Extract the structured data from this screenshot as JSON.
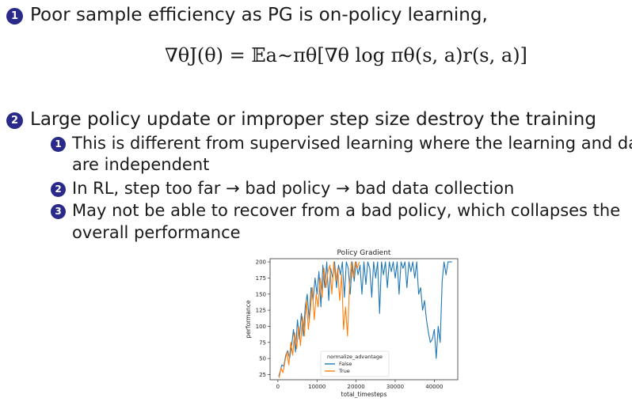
{
  "items": {
    "i1": {
      "num": "1",
      "text": "Poor sample efficiency as PG is on-policy learning,"
    },
    "i2": {
      "num": "2",
      "text": "Large policy update or improper step size destroy the training"
    }
  },
  "formula": {
    "lhs": "∇θJ(θ) =",
    "rhs": "𝔼a∼πθ[∇θ log πθ(s, a)r(s, a)]"
  },
  "subitems": [
    {
      "num": "1",
      "line1": "This is different from supervised learning where the learning and data",
      "line2": "are independent"
    },
    {
      "num": "2",
      "line1": "In RL, step too far → bad policy → bad data collection"
    },
    {
      "num": "3",
      "line1": "May not be able to recover from a bad policy, which collapses the",
      "line2": "overall performance"
    }
  ],
  "chart_data": {
    "type": "line",
    "title": "Policy Gradient",
    "xlabel": "total_timesteps",
    "ylabel": "performance",
    "xlim": [
      -2000,
      46000
    ],
    "ylim": [
      17,
      205
    ],
    "xticks": [
      0,
      10000,
      20000,
      30000,
      40000
    ],
    "yticks": [
      25,
      50,
      75,
      100,
      125,
      150,
      175,
      200
    ],
    "legend": {
      "title": "normalize_advantage",
      "placement": "lower-center"
    },
    "series": [
      {
        "name": "False",
        "color": "#1f77b4",
        "x": [
          200,
          600,
          1000,
          1500,
          2000,
          2500,
          3000,
          3500,
          4000,
          4500,
          5000,
          5500,
          6000,
          6500,
          7000,
          7500,
          8000,
          8500,
          9000,
          9500,
          10000,
          10500,
          11000,
          11500,
          12000,
          12500,
          13000,
          13500,
          14000,
          14500,
          15000,
          15500,
          16000,
          16500,
          17000,
          17500,
          18000,
          18500,
          19000,
          19500,
          20000,
          20500,
          21000,
          21500,
          22000,
          22500,
          23000,
          23500,
          24000,
          24500,
          25000,
          25500,
          26000,
          26500,
          27000,
          27500,
          28000,
          28500,
          29000,
          29500,
          30000,
          30500,
          31000,
          31500,
          32000,
          32500,
          33000,
          33500,
          34000,
          34500,
          35000,
          35500,
          36000,
          36500,
          37000,
          37500,
          38000,
          38500,
          39000,
          39500,
          40000,
          40500,
          41000,
          41500,
          42000,
          42500,
          43000,
          43500,
          44000,
          44500
        ],
        "y": [
          22,
          30,
          40,
          38,
          55,
          62,
          50,
          70,
          95,
          60,
          110,
          80,
          120,
          85,
          130,
          150,
          110,
          160,
          140,
          175,
          150,
          185,
          130,
          195,
          160,
          200,
          140,
          190,
          175,
          200,
          160,
          195,
          180,
          200,
          145,
          200,
          190,
          150,
          200,
          170,
          200,
          180,
          195,
          150,
          200,
          165,
          200,
          190,
          145,
          200,
          175,
          200,
          120,
          200,
          180,
          200,
          160,
          200,
          185,
          200,
          175,
          200,
          150,
          200,
          190,
          200,
          160,
          200,
          185,
          200,
          175,
          200,
          150,
          160,
          125,
          140,
          110,
          90,
          75,
          80,
          95,
          50,
          100,
          75,
          170,
          200,
          180,
          200,
          200,
          200
        ]
      },
      {
        "name": "True",
        "color": "#ff7f0e",
        "x": [
          300,
          800,
          1300,
          1800,
          2300,
          2800,
          3300,
          3800,
          4300,
          4800,
          5300,
          5800,
          6300,
          6800,
          7300,
          7800,
          8300,
          8800,
          9300,
          9800,
          10300,
          10800,
          11300,
          11800,
          12300,
          12800,
          13300,
          13800,
          14300,
          14800,
          15300,
          15800,
          16300,
          16800,
          17300,
          17800,
          18300,
          18800,
          19300,
          19800,
          20300,
          20800
        ],
        "y": [
          20,
          35,
          28,
          45,
          60,
          40,
          75,
          55,
          90,
          65,
          100,
          70,
          115,
          85,
          140,
          95,
          125,
          160,
          110,
          150,
          130,
          175,
          145,
          190,
          160,
          185,
          195,
          150,
          200,
          170,
          190,
          140,
          180,
          95,
          130,
          85,
          160,
          200,
          175,
          200,
          190,
          200
        ]
      }
    ]
  }
}
